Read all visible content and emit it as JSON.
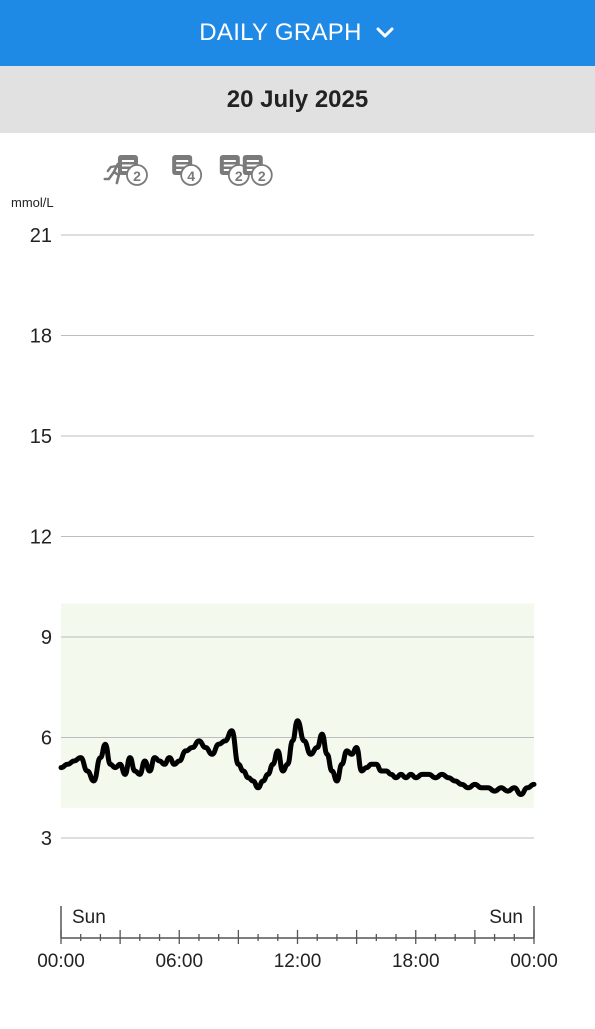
{
  "header": {
    "title": "DAILY GRAPH",
    "dropdown_icon": "chevron-down-icon"
  },
  "date": {
    "label": "20 July 2025"
  },
  "colors": {
    "header_bg": "#1f8ae6",
    "datebar_bg": "#e1e1e1",
    "target_range_fill": "#f3f9ec",
    "line": "#000000",
    "icon": "#7a7a7a"
  },
  "event_markers": [
    {
      "icon": "exercise-icon",
      "time": "02:50"
    },
    {
      "icon": "note-icon",
      "time": "03:30",
      "count": "2"
    },
    {
      "icon": "note-icon",
      "time": "06:15",
      "count": "4"
    },
    {
      "icon": "note-icon",
      "time": "08:40",
      "count": "2"
    },
    {
      "icon": "note-icon",
      "time": "09:50",
      "count": "2"
    }
  ],
  "chart_data": {
    "type": "line",
    "unit_label": "mmol/L",
    "ylim": [
      3,
      21
    ],
    "yticks": [
      "21",
      "18",
      "15",
      "12",
      "9",
      "6",
      "3"
    ],
    "target_range": [
      3.9,
      10.0
    ],
    "xlim": [
      "00:00",
      "24:00"
    ],
    "xticks": [
      "00:00",
      "06:00",
      "12:00",
      "18:00",
      "00:00"
    ],
    "day_labels": {
      "start": "Sun",
      "end": "Sun"
    },
    "grid": true,
    "legend": "none",
    "series": [
      {
        "x": [
          "00:00",
          "00:20",
          "00:40",
          "01:00",
          "01:20",
          "01:40",
          "02:00",
          "02:15",
          "02:30",
          "02:45",
          "03:00",
          "03:15",
          "03:30",
          "03:45",
          "04:00",
          "04:15",
          "04:30",
          "04:45",
          "05:00",
          "05:15",
          "05:30",
          "05:45",
          "06:00",
          "06:20",
          "06:40",
          "07:00",
          "07:20",
          "07:40",
          "08:00",
          "08:20",
          "08:40",
          "09:00",
          "09:15",
          "09:30",
          "09:45",
          "10:00",
          "10:15",
          "10:30",
          "10:45",
          "11:00",
          "11:15",
          "11:30",
          "11:45",
          "12:00",
          "12:20",
          "12:40",
          "13:00",
          "13:15",
          "13:30",
          "13:45",
          "14:00",
          "14:15",
          "14:30",
          "14:45",
          "15:00",
          "15:15",
          "15:30",
          "15:45",
          "16:00",
          "16:15",
          "16:30",
          "16:45",
          "17:00",
          "17:15",
          "17:30",
          "17:45",
          "18:00",
          "18:20",
          "18:40",
          "19:00",
          "19:20",
          "19:40",
          "20:00",
          "20:20",
          "20:40",
          "21:00",
          "21:20",
          "21:40",
          "22:00",
          "22:20",
          "22:40",
          "23:00",
          "23:20",
          "23:40",
          "24:00"
        ],
        "y": [
          5.1,
          5.2,
          5.3,
          5.4,
          5.0,
          4.7,
          5.4,
          5.8,
          5.2,
          5.1,
          5.2,
          4.9,
          5.4,
          5.0,
          4.9,
          5.3,
          5.0,
          5.4,
          5.3,
          5.2,
          5.4,
          5.2,
          5.3,
          5.6,
          5.7,
          5.9,
          5.7,
          5.5,
          5.8,
          5.9,
          6.2,
          5.2,
          5.0,
          4.8,
          4.7,
          4.5,
          4.7,
          4.9,
          5.2,
          5.6,
          5.0,
          5.2,
          5.9,
          6.5,
          5.9,
          5.5,
          5.7,
          6.1,
          5.5,
          5.0,
          4.7,
          5.2,
          5.6,
          5.5,
          5.7,
          5.0,
          5.1,
          5.2,
          5.2,
          5.0,
          5.0,
          4.9,
          4.8,
          4.9,
          4.8,
          4.9,
          4.8,
          4.9,
          4.9,
          4.8,
          4.9,
          4.8,
          4.7,
          4.6,
          4.5,
          4.6,
          4.5,
          4.5,
          4.4,
          4.5,
          4.4,
          4.5,
          4.3,
          4.5,
          4.6
        ]
      }
    ]
  }
}
